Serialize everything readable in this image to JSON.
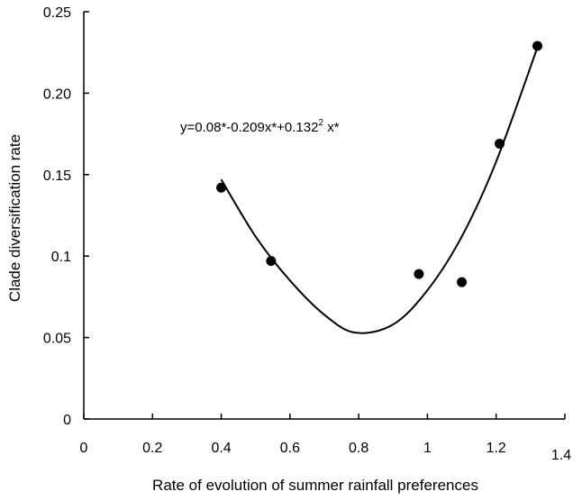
{
  "chart_data": {
    "type": "scatter",
    "title": "",
    "xlabel": "Rate of evolution of summer rainfall preferences",
    "ylabel": "Clade diversification rate",
    "xlim": [
      0,
      1.4
    ],
    "ylim": [
      0,
      0.25
    ],
    "x_ticks": [
      0,
      0.2,
      0.4,
      0.6,
      0.8,
      1,
      1.2,
      1.4
    ],
    "x_tick_labels": [
      "0",
      "0.2",
      "0.4",
      "0.6",
      "0.8",
      "1",
      "1.2",
      "1.4"
    ],
    "y_ticks": [
      0,
      0.05,
      0.1,
      0.15,
      0.2,
      0.25
    ],
    "y_tick_labels": [
      "0",
      "0.05",
      "0.1",
      "0.15",
      "0.20",
      "0.25"
    ],
    "grid": false,
    "series": [
      {
        "name": "data",
        "x": [
          0.4,
          0.545,
          0.975,
          1.1,
          1.21,
          1.32
        ],
        "y": [
          0.142,
          0.097,
          0.089,
          0.084,
          0.169,
          0.229
        ]
      }
    ],
    "fit_curve": {
      "type": "quadratic",
      "x": [
        0.4,
        0.5,
        0.6,
        0.7,
        0.79,
        0.9,
        1.0,
        1.1,
        1.2,
        1.32
      ],
      "y": [
        0.147,
        0.112,
        0.085,
        0.064,
        0.053,
        0.058,
        0.079,
        0.112,
        0.158,
        0.228
      ]
    },
    "annotation": {
      "prefix": "y=0.08*-0.209x*+0.132",
      "superscript": "2",
      "suffix": " x*"
    }
  }
}
